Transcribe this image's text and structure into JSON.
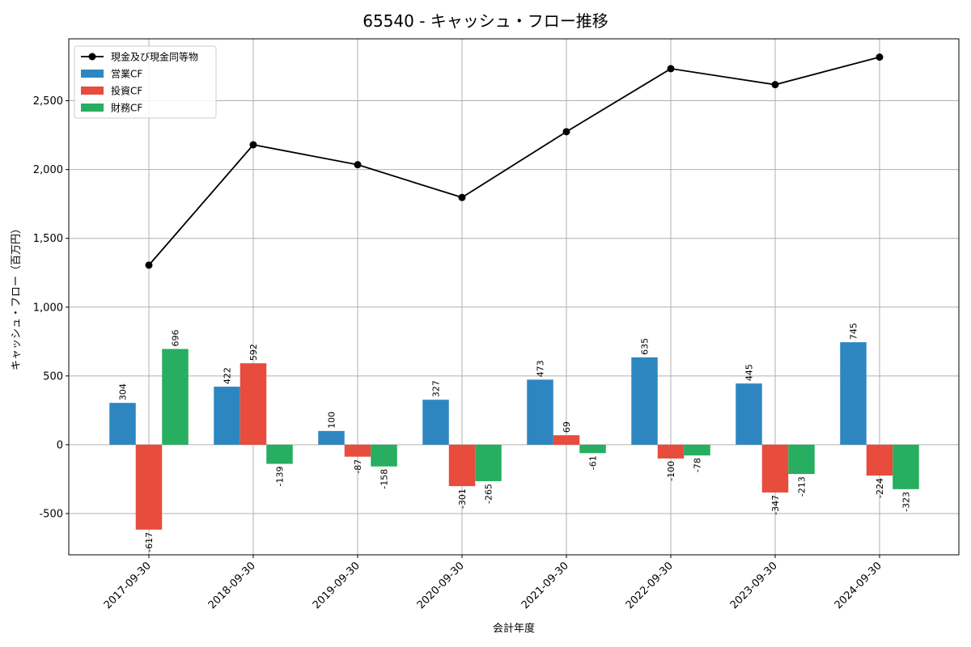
{
  "chart_data": {
    "type": "bar",
    "title": "65540 - キャッシュ・フロー推移",
    "xlabel": "会計年度",
    "ylabel": "キャッシュ・フロー（百万円）",
    "ylim": [
      -800,
      2950
    ],
    "yticks": [
      -500,
      0,
      500,
      1000,
      1500,
      2000,
      2500
    ],
    "ytick_labels": [
      "-500",
      "0",
      "500",
      "1,000",
      "1,500",
      "2,000",
      "2,500"
    ],
    "grid": true,
    "legend_position": "top-left",
    "categories": [
      "2017-09-30",
      "2018-09-30",
      "2019-09-30",
      "2020-09-30",
      "2021-09-30",
      "2022-09-30",
      "2023-09-30",
      "2024-09-30"
    ],
    "series": [
      {
        "name": "営業CF",
        "type": "bar",
        "color": "#2e86c1",
        "values": [
          304,
          422,
          100,
          327,
          473,
          635,
          445,
          745
        ],
        "labels": [
          "304",
          "422",
          "100",
          "327",
          "473",
          "635",
          "445",
          "745"
        ]
      },
      {
        "name": "投資CF",
        "type": "bar",
        "color": "#e74c3c",
        "values": [
          -617,
          592,
          -87,
          -301,
          69,
          -100,
          -347,
          -224
        ],
        "labels": [
          "-617",
          "592",
          "-87",
          "-301",
          "69",
          "-100",
          "-347",
          "-224"
        ]
      },
      {
        "name": "財務CF",
        "type": "bar",
        "color": "#27ae60",
        "values": [
          696,
          -139,
          -158,
          -265,
          -61,
          -78,
          -213,
          -323
        ],
        "labels": [
          "696",
          "-139",
          "-158",
          "-265",
          "-61",
          "-78",
          "-213",
          "-323"
        ]
      },
      {
        "name": "現金及び現金同等物",
        "type": "line",
        "color": "#000000",
        "values": [
          1305,
          2180,
          2035,
          1797,
          2275,
          2733,
          2617,
          2817
        ]
      }
    ]
  }
}
